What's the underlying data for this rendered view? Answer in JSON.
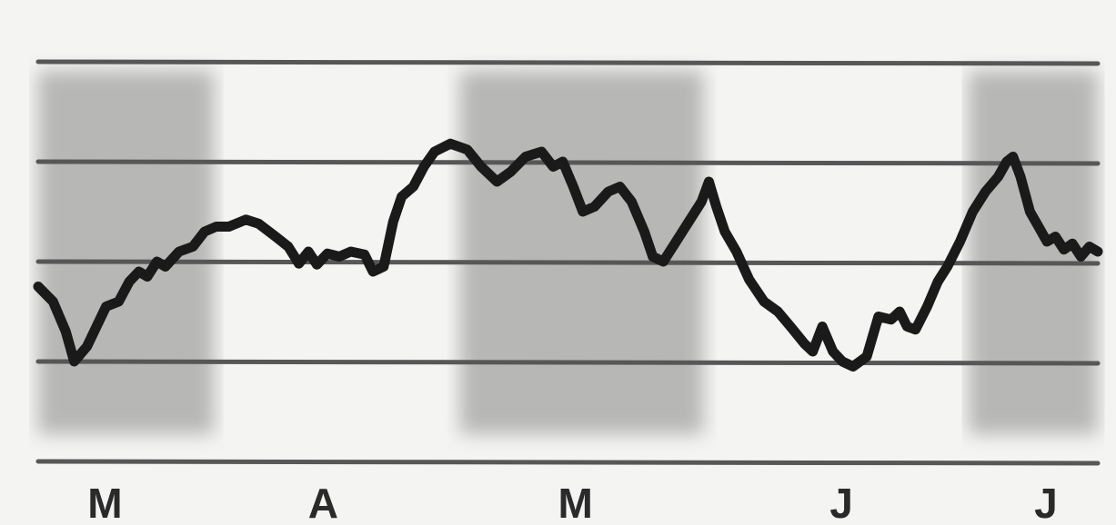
{
  "chart_data": {
    "type": "line",
    "title": "",
    "xlabel": "",
    "ylabel": "",
    "grid": true,
    "legend": "none",
    "x_ticks": [
      {
        "label": "M",
        "x": 6.3
      },
      {
        "label": "A",
        "x": 26.9
      },
      {
        "label": "M",
        "x": 50.7
      },
      {
        "label": "J",
        "x": 75.8
      },
      {
        "label": "J",
        "x": 95.1
      }
    ],
    "shaded_bands": [
      {
        "x0": 0,
        "x1": 16.6
      },
      {
        "x0": 39.8,
        "x1": 62.8
      },
      {
        "x0": 87.8,
        "x1": 100
      }
    ],
    "xlim": [
      0,
      100
    ],
    "ylim": [
      0,
      4
    ],
    "gridlines_y": [
      0,
      1,
      2,
      3,
      4
    ],
    "series": [
      {
        "values": [
          [
            0,
            1.75
          ],
          [
            1.4,
            1.6
          ],
          [
            2.6,
            1.3
          ],
          [
            3.4,
            1.0
          ],
          [
            4.6,
            1.15
          ],
          [
            6.4,
            1.55
          ],
          [
            7.6,
            1.6
          ],
          [
            8.6,
            1.8
          ],
          [
            9.5,
            1.9
          ],
          [
            10.3,
            1.85
          ],
          [
            11.2,
            2.0
          ],
          [
            12.0,
            1.95
          ],
          [
            13.3,
            2.1
          ],
          [
            14.6,
            2.15
          ],
          [
            15.7,
            2.3
          ],
          [
            16.8,
            2.35
          ],
          [
            18.0,
            2.35
          ],
          [
            19.6,
            2.42
          ],
          [
            20.8,
            2.38
          ],
          [
            22.4,
            2.25
          ],
          [
            23.6,
            2.15
          ],
          [
            24.6,
            1.98
          ],
          [
            25.5,
            2.1
          ],
          [
            26.3,
            1.97
          ],
          [
            27.3,
            2.08
          ],
          [
            28.4,
            2.05
          ],
          [
            29.5,
            2.1
          ],
          [
            30.8,
            2.07
          ],
          [
            31.6,
            1.9
          ],
          [
            32.6,
            1.95
          ],
          [
            33.5,
            2.4
          ],
          [
            34.3,
            2.65
          ],
          [
            35.4,
            2.75
          ],
          [
            36.4,
            2.95
          ],
          [
            37.4,
            3.1
          ],
          [
            38.9,
            3.18
          ],
          [
            40.5,
            3.12
          ],
          [
            41.8,
            2.95
          ],
          [
            43.3,
            2.8
          ],
          [
            44.6,
            2.9
          ],
          [
            46.0,
            3.05
          ],
          [
            47.5,
            3.1
          ],
          [
            48.6,
            2.95
          ],
          [
            49.5,
            3.0
          ],
          [
            50.5,
            2.75
          ],
          [
            51.4,
            2.5
          ],
          [
            52.5,
            2.55
          ],
          [
            53.8,
            2.7
          ],
          [
            54.9,
            2.75
          ],
          [
            56.0,
            2.6
          ],
          [
            57.2,
            2.3
          ],
          [
            58.0,
            2.05
          ],
          [
            59.0,
            2.0
          ],
          [
            60.2,
            2.2
          ],
          [
            61.4,
            2.4
          ],
          [
            62.6,
            2.6
          ],
          [
            63.3,
            2.8
          ],
          [
            64.0,
            2.55
          ],
          [
            64.8,
            2.3
          ],
          [
            65.9,
            2.1
          ],
          [
            67.1,
            1.82
          ],
          [
            68.5,
            1.6
          ],
          [
            69.8,
            1.5
          ],
          [
            71.0,
            1.35
          ],
          [
            72.3,
            1.18
          ],
          [
            73.1,
            1.1
          ],
          [
            74.0,
            1.35
          ],
          [
            75.0,
            1.1
          ],
          [
            75.9,
            1.0
          ],
          [
            76.9,
            0.95
          ],
          [
            78.2,
            1.05
          ],
          [
            79.3,
            1.45
          ],
          [
            80.5,
            1.42
          ],
          [
            81.3,
            1.5
          ],
          [
            82.0,
            1.35
          ],
          [
            82.8,
            1.32
          ],
          [
            83.9,
            1.55
          ],
          [
            84.9,
            1.8
          ],
          [
            85.8,
            1.95
          ],
          [
            87.0,
            2.2
          ],
          [
            88.2,
            2.5
          ],
          [
            89.4,
            2.7
          ],
          [
            90.6,
            2.85
          ],
          [
            91.4,
            3.0
          ],
          [
            92.0,
            3.05
          ],
          [
            92.7,
            2.85
          ],
          [
            93.6,
            2.5
          ],
          [
            94.4,
            2.35
          ],
          [
            95.2,
            2.2
          ],
          [
            96.0,
            2.25
          ],
          [
            96.8,
            2.12
          ],
          [
            97.6,
            2.18
          ],
          [
            98.4,
            2.05
          ],
          [
            99.2,
            2.15
          ],
          [
            100,
            2.1
          ]
        ]
      }
    ],
    "colors": {
      "background": "#f4f4f3",
      "band": "#a3a3a1",
      "grid": "#575757",
      "line": "#1a1a1a",
      "label": "#2a2a2a"
    }
  }
}
